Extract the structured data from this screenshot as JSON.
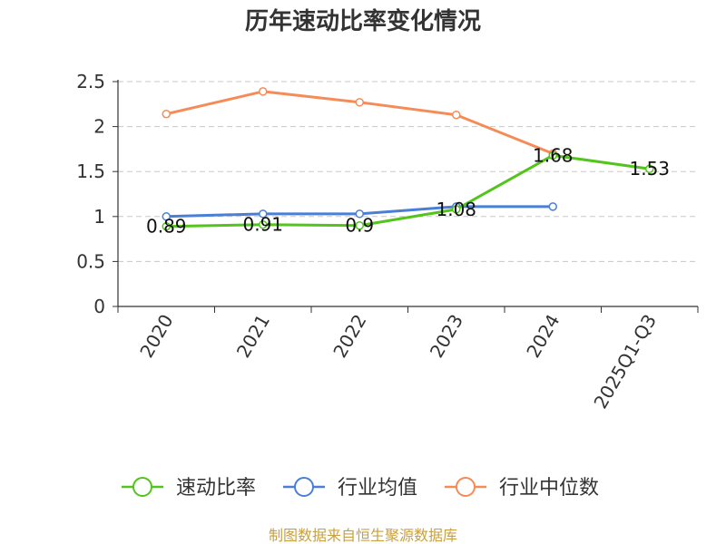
{
  "chart_data": {
    "type": "line",
    "title": "历年速动比率变化情况",
    "categories": [
      "2020",
      "2021",
      "2022",
      "2023",
      "2024",
      "2025Q1-Q3"
    ],
    "ylim": [
      0,
      2.5
    ],
    "yticks": [
      "0",
      "0.5",
      "1",
      "1.5",
      "2",
      "2.5"
    ],
    "grid": true,
    "legend_position": "bottom",
    "series": [
      {
        "name": "速动比率",
        "color": "#52c41a",
        "values": [
          0.89,
          0.91,
          0.9,
          1.08,
          1.68,
          1.53
        ],
        "labels": [
          "0.89",
          "0.91",
          "0.9",
          "1.08",
          "1.68",
          "1.53"
        ]
      },
      {
        "name": "行业均值",
        "color": "#4a7fd6",
        "values": [
          1.0,
          1.03,
          1.03,
          1.11,
          1.11,
          null
        ]
      },
      {
        "name": "行业中位数",
        "color": "#f58b56",
        "values": [
          2.14,
          2.39,
          2.27,
          2.13,
          1.7,
          null
        ]
      }
    ],
    "source": "制图数据来自恒生聚源数据库"
  }
}
